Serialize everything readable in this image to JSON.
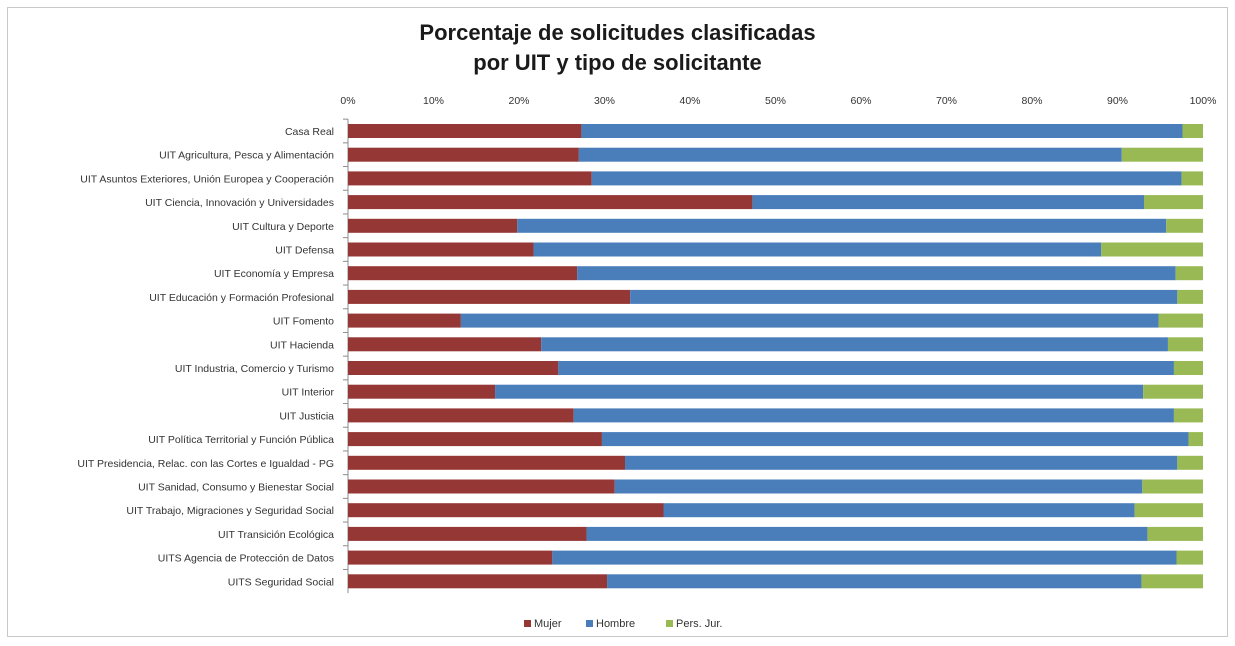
{
  "chart_data": {
    "type": "bar",
    "orientation": "horizontal",
    "stacked": true,
    "title_lines": [
      "Porcentaje de solicitudes clasificadas",
      "por UIT y tipo de solicitante"
    ],
    "x_ticks": [
      "0%",
      "10%",
      "20%",
      "30%",
      "40%",
      "50%",
      "60%",
      "70%",
      "80%",
      "90%",
      "100%"
    ],
    "xlim": [
      0,
      100
    ],
    "legend_position": "bottom",
    "categories": [
      "Casa Real",
      "UIT Agricultura, Pesca y Alimentación",
      "UIT Asuntos Exteriores, Unión Europea y Cooperación",
      "UIT Ciencia, Innovación y Universidades",
      "UIT Cultura y Deporte",
      "UIT Defensa",
      "UIT Economía y Empresa",
      "UIT Educación y Formación Profesional",
      "UIT Fomento",
      "UIT Hacienda",
      "UIT Industria, Comercio y Turismo",
      "UIT Interior",
      "UIT Justicia",
      "UIT Política Territorial y Función Pública",
      "UIT Presidencia, Relac. con las Cortes e Igualdad - PG",
      "UIT Sanidad, Consumo y Bienestar Social",
      "UIT Trabajo, Migraciones y Seguridad Social",
      "UIT Transición Ecológica",
      "UITS Agencia de Protección de Datos",
      "UITS Seguridad Social"
    ],
    "series": [
      {
        "name": "Mujer",
        "color": "#953735",
        "values": [
          27.3,
          27.0,
          28.5,
          47.3,
          19.8,
          21.7,
          26.8,
          33.0,
          13.2,
          22.6,
          24.6,
          17.2,
          26.4,
          29.7,
          32.4,
          31.2,
          36.9,
          27.9,
          23.9,
          30.3
        ]
      },
      {
        "name": "Hombre",
        "color": "#4a7ebb",
        "values": [
          70.3,
          63.5,
          69.0,
          45.8,
          75.9,
          66.4,
          70.0,
          64.0,
          81.6,
          73.3,
          72.0,
          75.8,
          70.2,
          68.6,
          64.6,
          61.7,
          55.1,
          65.6,
          73.0,
          62.5
        ]
      },
      {
        "name": "Pers. Jur.",
        "color": "#98b954",
        "values": [
          2.4,
          9.5,
          2.5,
          6.9,
          4.3,
          11.9,
          3.2,
          3.0,
          5.2,
          4.1,
          3.4,
          7.0,
          3.4,
          1.7,
          3.0,
          7.1,
          8.0,
          6.5,
          3.1,
          7.2
        ]
      }
    ]
  }
}
